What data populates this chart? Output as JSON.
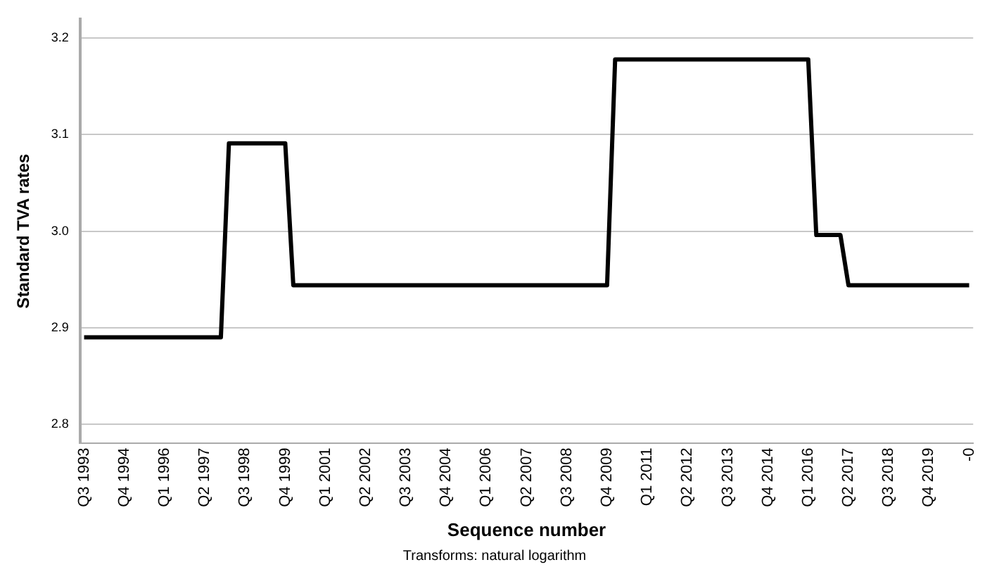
{
  "chart_data": {
    "type": "line",
    "xlabel": "Sequence number",
    "ylabel": "Standard TVA rates",
    "annotations": [
      "Transforms: natural logarithm"
    ],
    "categories": [
      "Q3 1993",
      null,
      null,
      null,
      null,
      "Q4 1994",
      null,
      null,
      null,
      null,
      "Q1 1996",
      null,
      null,
      null,
      null,
      "Q2 1997",
      null,
      null,
      null,
      null,
      "Q3 1998",
      null,
      null,
      null,
      null,
      "Q4 1999",
      null,
      null,
      null,
      null,
      "Q1 2001",
      null,
      null,
      null,
      null,
      "Q2 2002",
      null,
      null,
      null,
      null,
      "Q3 2003",
      null,
      null,
      null,
      null,
      "Q4 2004",
      null,
      null,
      null,
      null,
      "Q1 2006",
      null,
      null,
      null,
      null,
      "Q2 2007",
      null,
      null,
      null,
      null,
      "Q3 2008",
      null,
      null,
      null,
      null,
      "Q4 2009",
      null,
      null,
      null,
      null,
      "Q1 2011",
      null,
      null,
      null,
      null,
      "Q2 2012",
      null,
      null,
      null,
      null,
      "Q3 2013",
      null,
      null,
      null,
      null,
      "Q4 2014",
      null,
      null,
      null,
      null,
      "Q1 2016",
      null,
      null,
      null,
      null,
      "Q2 2017",
      null,
      null,
      null,
      null,
      "Q3 2018",
      null,
      null,
      null,
      null,
      "Q4 2019",
      null,
      null,
      null,
      null,
      "-0"
    ],
    "series": [
      {
        "color": "#000000",
        "values": [
          2.89,
          2.89,
          2.89,
          2.89,
          2.89,
          2.89,
          2.89,
          2.89,
          2.89,
          2.89,
          2.89,
          2.89,
          2.89,
          2.89,
          2.89,
          2.89,
          2.89,
          2.89,
          3.091,
          3.091,
          3.091,
          3.091,
          3.091,
          3.091,
          3.091,
          3.091,
          2.944,
          2.944,
          2.944,
          2.944,
          2.944,
          2.944,
          2.944,
          2.944,
          2.944,
          2.944,
          2.944,
          2.944,
          2.944,
          2.944,
          2.944,
          2.944,
          2.944,
          2.944,
          2.944,
          2.944,
          2.944,
          2.944,
          2.944,
          2.944,
          2.944,
          2.944,
          2.944,
          2.944,
          2.944,
          2.944,
          2.944,
          2.944,
          2.944,
          2.944,
          2.944,
          2.944,
          2.944,
          2.944,
          2.944,
          2.944,
          3.178,
          3.178,
          3.178,
          3.178,
          3.178,
          3.178,
          3.178,
          3.178,
          3.178,
          3.178,
          3.178,
          3.178,
          3.178,
          3.178,
          3.178,
          3.178,
          3.178,
          3.178,
          3.178,
          3.178,
          3.178,
          3.178,
          3.178,
          3.178,
          3.178,
          2.996,
          2.996,
          2.996,
          2.996,
          2.944,
          2.944,
          2.944,
          2.944,
          2.944,
          2.944,
          2.944,
          2.944,
          2.944,
          2.944,
          2.944,
          2.944,
          2.944,
          2.944,
          2.944,
          2.944
        ]
      }
    ],
    "ylim": [
      2.78,
      3.22
    ],
    "yticks": [
      2.8,
      2.9,
      {
        "value": 3.0,
        "label": "3.0"
      },
      3.1,
      3.2
    ],
    "grid": "y",
    "legend": false,
    "marker": "none",
    "line_style": "solid"
  }
}
